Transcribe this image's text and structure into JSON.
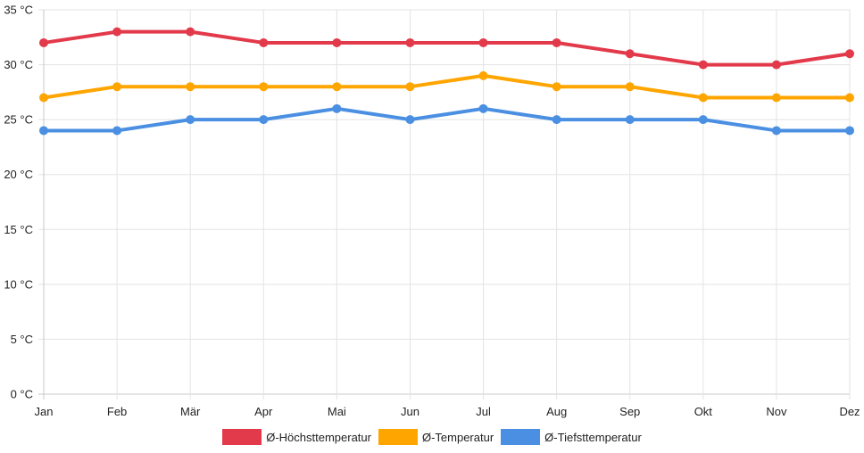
{
  "chart_data": {
    "type": "line",
    "title": "",
    "xlabel": "",
    "ylabel": "",
    "categories": [
      "Jan",
      "Feb",
      "Mär",
      "Apr",
      "Mai",
      "Jun",
      "Jul",
      "Aug",
      "Sep",
      "Okt",
      "Nov",
      "Dez"
    ],
    "ylim": [
      0,
      35
    ],
    "yticks": [
      0,
      5,
      10,
      15,
      20,
      25,
      30,
      35
    ],
    "ytick_labels": [
      "0 °C",
      "5 °C",
      "10 °C",
      "15 °C",
      "20 °C",
      "25 °C",
      "30 °C",
      "35 °C"
    ],
    "grid": true,
    "legend_position": "bottom",
    "series": [
      {
        "name": "Ø-Höchsttemperatur",
        "color": "#e23a4a",
        "values": [
          32,
          33,
          33,
          32,
          32,
          32,
          32,
          32,
          31,
          30,
          30,
          31
        ]
      },
      {
        "name": "Ø-Temperatur",
        "color": "#ffa500",
        "values": [
          27,
          28,
          28,
          28,
          28,
          28,
          29,
          28,
          28,
          27,
          27,
          27
        ]
      },
      {
        "name": "Ø-Tiefsttemperatur",
        "color": "#4a8fe2",
        "values": [
          24,
          24,
          25,
          25,
          26,
          25,
          26,
          25,
          25,
          25,
          24,
          24
        ]
      }
    ]
  }
}
